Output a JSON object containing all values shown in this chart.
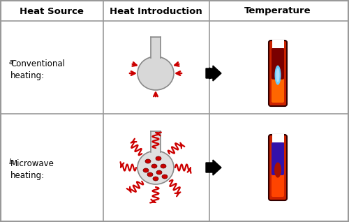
{
  "title_row": [
    "Heat Source",
    "Heat Introduction",
    "Temperature"
  ],
  "row_a_label": "a",
  "row_a_text": "Conventional\nheating:",
  "row_b_label": "b",
  "row_b_text": "Microwave\nheating:",
  "bg_color": "#ffffff",
  "border_color": "#999999",
  "header_color": "#000000",
  "flask_fill_color": "#d8d8d8",
  "flask_outline_color": "#888888",
  "arrow_color": "#111111",
  "red_arrow_color": "#cc0000",
  "microwave_color": "#cc0000",
  "hot_dot_color": "#cc0000",
  "tube_outer_dark": "#990000",
  "tube_a_top_fill": "#7a0000",
  "tube_a_bot_orange": "#ff6600",
  "tube_a_cyan": "#66ccff",
  "tube_a_lt_cyan": "#aaddff",
  "tube_b_purple": "#3311aa",
  "tube_b_red": "#cc1100",
  "tube_b_orange": "#ff5500"
}
